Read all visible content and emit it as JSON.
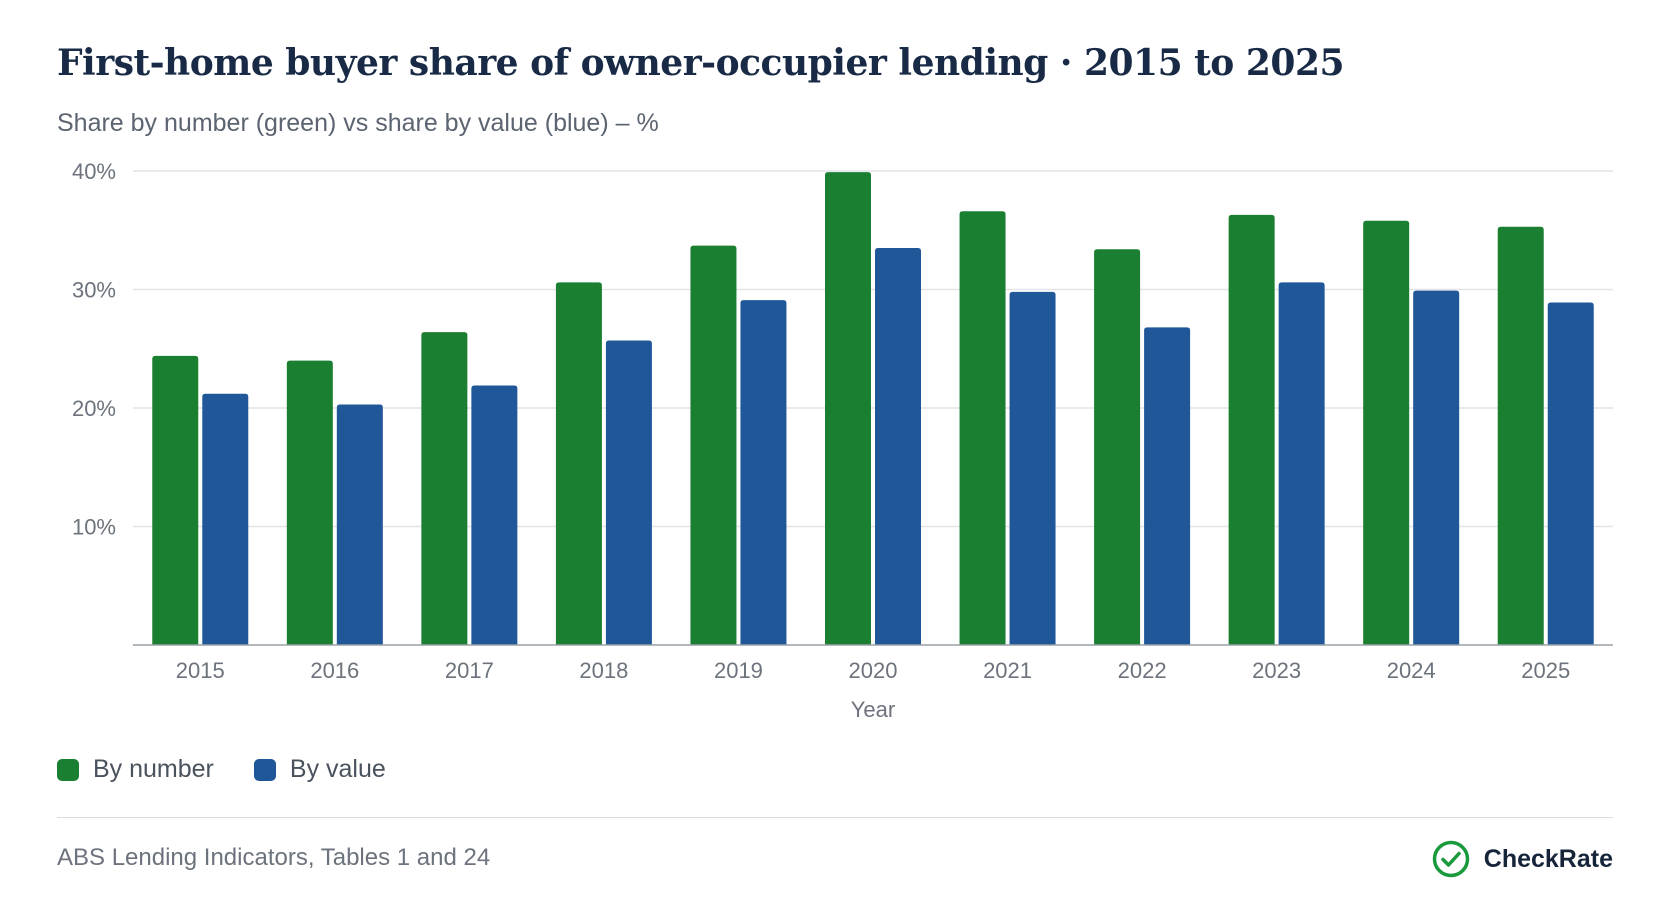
{
  "title": "First-home buyer share of owner-occupier lending · 2015 to 2025",
  "subtitle": "Share by number (green) vs share by value (blue) – %",
  "source": "ABS Lending Indicators, Tables 1 and 24",
  "brand": {
    "name": "CheckRate",
    "icon": "check-circle-icon"
  },
  "colors": {
    "by_number": "#1a7f31",
    "by_value": "#1f5799",
    "grid": "#e2e4e7",
    "axis": "#9aa0a6"
  },
  "chart_data": {
    "type": "bar",
    "title": "First-home buyer share of owner-occupier lending · 2015 to 2025",
    "subtitle": "Share by number (green) vs share by value (blue) – %",
    "xlabel": "Year",
    "ylabel": "",
    "ylim": [
      0,
      40
    ],
    "yticks": [
      10,
      20,
      30,
      40
    ],
    "ytick_labels": [
      "10%",
      "20%",
      "30%",
      "40%"
    ],
    "grid": true,
    "legend_position": "bottom-left",
    "categories": [
      "2015",
      "2016",
      "2017",
      "2018",
      "2019",
      "2020",
      "2021",
      "2022",
      "2023",
      "2024",
      "2025"
    ],
    "series": [
      {
        "name": "By number",
        "color": "#1a7f31",
        "values": [
          24.4,
          24.0,
          26.4,
          30.6,
          33.7,
          39.9,
          36.6,
          33.4,
          36.3,
          35.8,
          35.3
        ]
      },
      {
        "name": "By value",
        "color": "#1f5799",
        "values": [
          21.2,
          20.3,
          21.9,
          25.7,
          29.1,
          33.5,
          29.8,
          26.8,
          30.6,
          29.9,
          28.9
        ]
      }
    ]
  }
}
